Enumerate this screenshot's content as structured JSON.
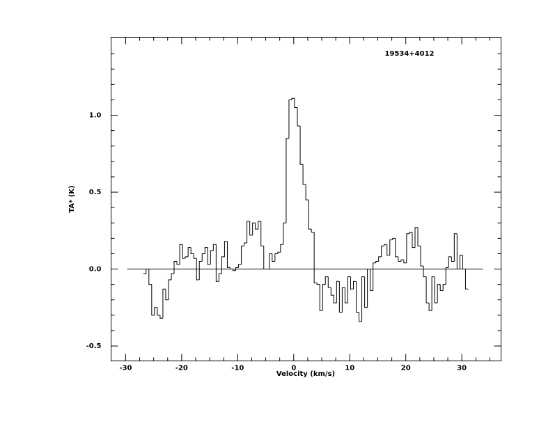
{
  "chart_data": {
    "type": "step",
    "annotation": "19534+4012",
    "xlabel": "Velocity (km/s)",
    "ylabel": "TA* (K)",
    "xlim": [
      -32.6,
      37.0
    ],
    "ylim": [
      -0.597,
      1.507
    ],
    "xticks": [
      -30,
      -20,
      -10,
      0,
      10,
      20,
      30
    ],
    "yticks": [
      -0.5,
      {
        "value": 0,
        "label": "0.0"
      },
      0.5,
      {
        "value": 1,
        "label": "1.0"
      }
    ],
    "xminorticks": [
      -27.5,
      -25,
      -22.5,
      -17.5,
      -15,
      -12.5,
      -7.5,
      -5,
      -2.5,
      2.5,
      5,
      7.5,
      12.5,
      15,
      17.5,
      22.5,
      25,
      27.5,
      32.5,
      35
    ],
    "yminorticks": [
      -0.4,
      -0.3,
      -0.2,
      -0.1,
      0.1,
      0.2,
      0.3,
      0.4,
      0.6,
      0.7,
      0.8,
      0.9,
      1.1,
      1.2,
      1.3,
      1.4
    ],
    "baseline": 0,
    "color": "#000000",
    "x": [
      -26.6,
      -26.1,
      -25.6,
      -25.1,
      -24.6,
      -24.1,
      -23.6,
      -23.1,
      -22.6,
      -22.1,
      -21.6,
      -21.1,
      -20.6,
      -20.1,
      -19.6,
      -19.1,
      -18.6,
      -18.1,
      -17.6,
      -17.1,
      -16.6,
      -16.1,
      -15.6,
      -15.1,
      -14.6,
      -14.1,
      -13.6,
      -13.1,
      -12.6,
      -12.1,
      -11.6,
      -11.1,
      -10.6,
      -10.1,
      -9.6,
      -9.1,
      -8.6,
      -8.1,
      -7.6,
      -7.1,
      -6.6,
      -6.1,
      -5.6,
      -5.1,
      -4.6,
      -4.1,
      -3.6,
      -3.1,
      -2.6,
      -2.1,
      -1.6,
      -1.1,
      -0.6,
      -0.1,
      0.4,
      0.9,
      1.4,
      1.9,
      2.4,
      2.9,
      3.4,
      3.9,
      4.4,
      4.9,
      5.4,
      5.9,
      6.4,
      6.9,
      7.4,
      7.9,
      8.4,
      8.9,
      9.4,
      9.9,
      10.4,
      10.9,
      11.4,
      11.9,
      12.4,
      12.9,
      13.4,
      13.9,
      14.4,
      14.9,
      15.4,
      15.9,
      16.4,
      16.9,
      17.4,
      17.9,
      18.4,
      18.9,
      19.4,
      19.9,
      20.4,
      20.9,
      21.4,
      21.9,
      22.4,
      22.9,
      23.4,
      23.9,
      24.4,
      24.9,
      25.4,
      25.9,
      26.4,
      26.9,
      27.4,
      27.9,
      28.4,
      28.9,
      29.4,
      29.9,
      30.4,
      30.9
    ],
    "values": [
      -0.03,
      0.0,
      -0.1,
      -0.3,
      -0.25,
      -0.3,
      -0.32,
      -0.13,
      -0.2,
      -0.07,
      -0.03,
      0.05,
      0.03,
      0.16,
      0.07,
      0.08,
      0.14,
      0.1,
      0.07,
      -0.07,
      0.05,
      0.1,
      0.14,
      0.03,
      0.12,
      0.16,
      -0.08,
      -0.03,
      0.08,
      0.18,
      0.01,
      0.0,
      -0.01,
      0.01,
      0.03,
      0.15,
      0.17,
      0.31,
      0.22,
      0.3,
      0.26,
      0.31,
      0.15,
      0.0,
      0.0,
      0.1,
      0.05,
      0.1,
      0.11,
      0.16,
      0.3,
      0.85,
      1.1,
      1.11,
      1.05,
      0.93,
      0.68,
      0.55,
      0.45,
      0.26,
      0.24,
      -0.09,
      -0.1,
      -0.27,
      -0.1,
      -0.05,
      -0.12,
      -0.17,
      -0.22,
      -0.08,
      -0.28,
      -0.12,
      -0.22,
      -0.05,
      -0.13,
      -0.08,
      -0.28,
      -0.34,
      -0.05,
      -0.25,
      0.0,
      -0.14,
      0.04,
      0.05,
      0.08,
      0.15,
      0.16,
      0.09,
      0.19,
      0.2,
      0.08,
      0.05,
      0.06,
      0.04,
      0.23,
      0.24,
      0.14,
      0.27,
      0.15,
      0.02,
      -0.05,
      -0.22,
      -0.27,
      -0.05,
      -0.22,
      -0.1,
      -0.14,
      -0.1,
      0.01,
      0.08,
      0.05,
      0.23,
      0.0,
      0.09,
      0.0,
      -0.13
    ]
  }
}
